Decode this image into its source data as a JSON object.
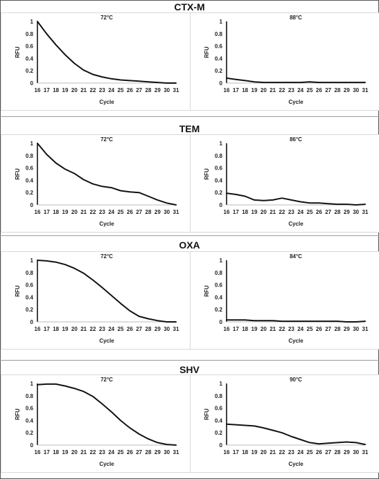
{
  "groups": [
    {
      "name": "CTX-M",
      "charts": [
        {
          "title": "72°C",
          "ylabel": "RFU",
          "xlabel": "Cycle",
          "y": [
            1.0,
            0.8,
            0.62,
            0.46,
            0.32,
            0.21,
            0.14,
            0.1,
            0.07,
            0.05,
            0.04,
            0.03,
            0.02,
            0.01,
            0.0,
            0.0
          ]
        },
        {
          "title": "88°C",
          "ylabel": "RFU",
          "xlabel": "Cycle",
          "y": [
            0.08,
            0.06,
            0.04,
            0.02,
            0.01,
            0.01,
            0.01,
            0.01,
            0.01,
            0.02,
            0.01,
            0.01,
            0.01,
            0.01,
            0.01,
            0.01
          ]
        }
      ]
    },
    {
      "name": "TEM",
      "charts": [
        {
          "title": "72°C",
          "ylabel": "RFU",
          "xlabel": "Cycle",
          "y": [
            1.0,
            0.82,
            0.68,
            0.58,
            0.51,
            0.41,
            0.34,
            0.3,
            0.28,
            0.23,
            0.21,
            0.2,
            0.14,
            0.08,
            0.03,
            0.0
          ]
        },
        {
          "title": "86°C",
          "ylabel": "RFU",
          "xlabel": "Cycle",
          "y": [
            0.19,
            0.17,
            0.14,
            0.08,
            0.07,
            0.08,
            0.11,
            0.08,
            0.05,
            0.03,
            0.03,
            0.02,
            0.01,
            0.01,
            0.0,
            0.01
          ]
        }
      ]
    },
    {
      "name": "OXA",
      "charts": [
        {
          "title": "72°C",
          "ylabel": "RFU",
          "xlabel": "Cycle",
          "y": [
            1.0,
            0.99,
            0.97,
            0.93,
            0.87,
            0.79,
            0.68,
            0.56,
            0.43,
            0.3,
            0.18,
            0.09,
            0.05,
            0.02,
            0.0,
            0.0
          ]
        },
        {
          "title": "84°C",
          "ylabel": "RFU",
          "xlabel": "Cycle",
          "y": [
            0.03,
            0.03,
            0.03,
            0.02,
            0.02,
            0.02,
            0.01,
            0.01,
            0.01,
            0.01,
            0.01,
            0.01,
            0.01,
            0.0,
            0.0,
            0.01
          ]
        }
      ]
    },
    {
      "name": "SHV",
      "charts": [
        {
          "title": "72°C",
          "ylabel": "RFU",
          "xlabel": "Cycle",
          "y": [
            0.98,
            0.99,
            0.99,
            0.96,
            0.92,
            0.87,
            0.79,
            0.67,
            0.54,
            0.4,
            0.28,
            0.18,
            0.1,
            0.04,
            0.01,
            0.0
          ]
        },
        {
          "title": "90°C",
          "ylabel": "RFU",
          "xlabel": "Cycle",
          "y": [
            0.34,
            0.33,
            0.32,
            0.31,
            0.28,
            0.24,
            0.2,
            0.14,
            0.09,
            0.04,
            0.02,
            0.03,
            0.04,
            0.05,
            0.04,
            0.01
          ]
        }
      ]
    }
  ],
  "chart_data": {
    "type": "line",
    "x": [
      16,
      17,
      18,
      19,
      20,
      21,
      22,
      23,
      24,
      25,
      26,
      27,
      28,
      29,
      30,
      31
    ],
    "xticks": [
      "16",
      "17",
      "18",
      "19",
      "20",
      "21",
      "22",
      "23",
      "24",
      "25",
      "26",
      "27",
      "28",
      "29",
      "30",
      "31"
    ],
    "yticks": [
      "0",
      "0.2",
      "0.4",
      "0.6",
      "0.8",
      "1"
    ],
    "ylim": [
      0,
      1
    ],
    "xlim": [
      16,
      31
    ],
    "grid": false,
    "line_color": "#111111"
  }
}
